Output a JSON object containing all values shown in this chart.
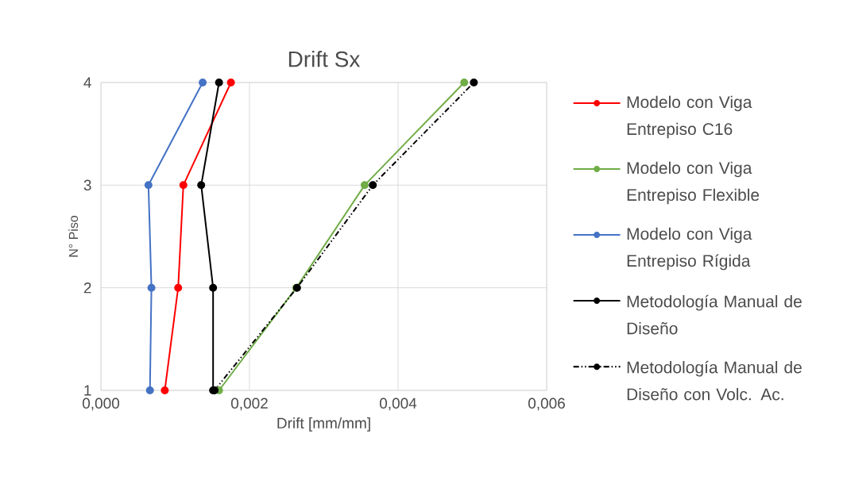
{
  "chart_data": {
    "type": "line",
    "title": "Drift Sx",
    "xlabel": "Drift [mm/mm]",
    "ylabel": "N° Piso",
    "xlim": [
      0,
      0.006
    ],
    "ylim": [
      1,
      4
    ],
    "xticks": [
      {
        "value": 0,
        "label": "0,000"
      },
      {
        "value": 0.002,
        "label": "0,002"
      },
      {
        "value": 0.004,
        "label": "0,004"
      },
      {
        "value": 0.006,
        "label": "0,006"
      }
    ],
    "yticks": [
      1,
      2,
      3,
      4
    ],
    "grid": true,
    "legend": "right",
    "marker": "circle",
    "series": [
      {
        "name": "Modelo con Viga Entrepiso C16",
        "color": "#ff0000",
        "x": [
          0.00086,
          0.00104,
          0.00111,
          0.00175
        ],
        "values": [
          1,
          2,
          3,
          4
        ],
        "line_style": "solid"
      },
      {
        "name": "Modelo con Viga Entrepiso Flexible",
        "color": "#70ad47",
        "x": [
          0.00159,
          0.00263,
          0.00355,
          0.00489
        ],
        "values": [
          1,
          2,
          3,
          4
        ],
        "line_style": "solid"
      },
      {
        "name": "Modelo con Viga Entrepiso Rígida",
        "color": "#4472c4",
        "x": [
          0.00066,
          0.00068,
          0.00064,
          0.00137
        ],
        "values": [
          1,
          2,
          3,
          4
        ],
        "line_style": "solid"
      },
      {
        "name": "Metodología Manual de Diseño",
        "color": "#000000",
        "x": [
          0.00151,
          0.00151,
          0.00135,
          0.00159
        ],
        "values": [
          1,
          2,
          3,
          4
        ],
        "line_style": "solid"
      },
      {
        "name": "Metodología Manual de Diseño con Volc. Ac.",
        "color": "#000000",
        "x": [
          0.00153,
          0.00264,
          0.00366,
          0.00502
        ],
        "values": [
          1,
          2,
          3,
          4
        ],
        "line_style": "dashed"
      }
    ]
  }
}
